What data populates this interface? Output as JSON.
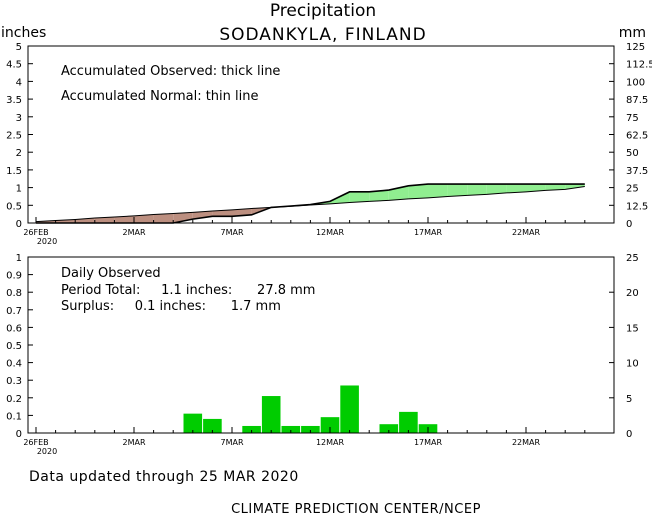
{
  "header": {
    "title": "Precipitation",
    "station": "SODANKYLA, FINLAND",
    "unit_left": "inches",
    "unit_right": "mm"
  },
  "top_panel": {
    "legend_observed": "Accumulated Observed: thick line",
    "legend_normal": "Accumulated Normal: thin line"
  },
  "bottom_panel": {
    "label_daily": "Daily Observed",
    "label_total": "Period Total:     1.1 inches:      27.8 mm",
    "label_surplus": "Surplus:     0.1 inches:      1.7 mm"
  },
  "footer": {
    "updated": "Data updated through 25 MAR 2020",
    "credit": "CLIMATE PREDICTION CENTER/NCEP"
  },
  "colors": {
    "surplus_fill": "#90ee90",
    "deficit_fill": "#bc8f80",
    "bar_fill": "#00cc00"
  },
  "chart_data": [
    {
      "type": "area",
      "title": "Precipitation",
      "subtitle": "SODANKYLA, FINLAND",
      "ylabel": "inches",
      "ylabel_right": "mm",
      "ylim": [
        0,
        5
      ],
      "ylim_right": [
        0,
        125
      ],
      "yticks": [
        "0",
        "0.5",
        "1",
        "1.5",
        "2",
        "2.5",
        "3",
        "3.5",
        "4",
        "4.5",
        "5"
      ],
      "yticks_right": [
        "0",
        "12.5",
        "25",
        "37.5",
        "50",
        "62.5",
        "75",
        "87.5",
        "100",
        "112.5",
        "125"
      ],
      "xticks": [
        "26FEB",
        "2MAR",
        "7MAR",
        "12MAR",
        "17MAR",
        "22MAR"
      ],
      "xtick_sublabel": "2020",
      "x": [
        "26FEB",
        "27FEB",
        "28FEB",
        "29FEB",
        "1MAR",
        "2MAR",
        "3MAR",
        "4MAR",
        "5MAR",
        "6MAR",
        "7MAR",
        "8MAR",
        "9MAR",
        "10MAR",
        "11MAR",
        "12MAR",
        "13MAR",
        "14MAR",
        "15MAR",
        "16MAR",
        "17MAR",
        "18MAR",
        "19MAR",
        "20MAR",
        "21MAR",
        "22MAR",
        "23MAR",
        "24MAR",
        "25MAR"
      ],
      "series": [
        {
          "name": "Accumulated Observed",
          "values": [
            0,
            0,
            0,
            0,
            0,
            0,
            0,
            0,
            0.11,
            0.19,
            0.19,
            0.23,
            0.44,
            0.48,
            0.52,
            0.61,
            0.88,
            0.88,
            0.93,
            1.05,
            1.1,
            1.1,
            1.1,
            1.1,
            1.1,
            1.1,
            1.1,
            1.1,
            1.1
          ]
        },
        {
          "name": "Accumulated Normal",
          "values": [
            0.04,
            0.07,
            0.1,
            0.14,
            0.17,
            0.2,
            0.24,
            0.27,
            0.3,
            0.34,
            0.37,
            0.41,
            0.44,
            0.47,
            0.51,
            0.54,
            0.58,
            0.61,
            0.64,
            0.68,
            0.71,
            0.75,
            0.78,
            0.81,
            0.85,
            0.88,
            0.92,
            0.95,
            1.03
          ]
        }
      ],
      "grid": false
    },
    {
      "type": "bar",
      "title": "Daily Observed",
      "ylim": [
        0,
        1
      ],
      "ylim_right": [
        0,
        25
      ],
      "yticks": [
        "0",
        "0.1",
        "0.2",
        "0.3",
        "0.4",
        "0.5",
        "0.6",
        "0.7",
        "0.8",
        "0.9",
        "1"
      ],
      "yticks_right": [
        "0",
        "5",
        "10",
        "15",
        "20",
        "25"
      ],
      "xticks": [
        "26FEB",
        "2MAR",
        "7MAR",
        "12MAR",
        "17MAR",
        "22MAR"
      ],
      "xtick_sublabel": "2020",
      "categories": [
        "26FEB",
        "27FEB",
        "28FEB",
        "29FEB",
        "1MAR",
        "2MAR",
        "3MAR",
        "4MAR",
        "5MAR",
        "6MAR",
        "7MAR",
        "8MAR",
        "9MAR",
        "10MAR",
        "11MAR",
        "12MAR",
        "13MAR",
        "14MAR",
        "15MAR",
        "16MAR",
        "17MAR",
        "18MAR",
        "19MAR",
        "20MAR",
        "21MAR",
        "22MAR",
        "23MAR",
        "24MAR",
        "25MAR"
      ],
      "values": [
        0,
        0,
        0,
        0,
        0,
        0,
        0,
        0,
        0.11,
        0.08,
        0,
        0.04,
        0.21,
        0.04,
        0.04,
        0.09,
        0.27,
        0,
        0.05,
        0.12,
        0.05,
        0,
        0,
        0,
        0,
        0,
        0,
        0,
        0
      ],
      "grid": false
    }
  ]
}
